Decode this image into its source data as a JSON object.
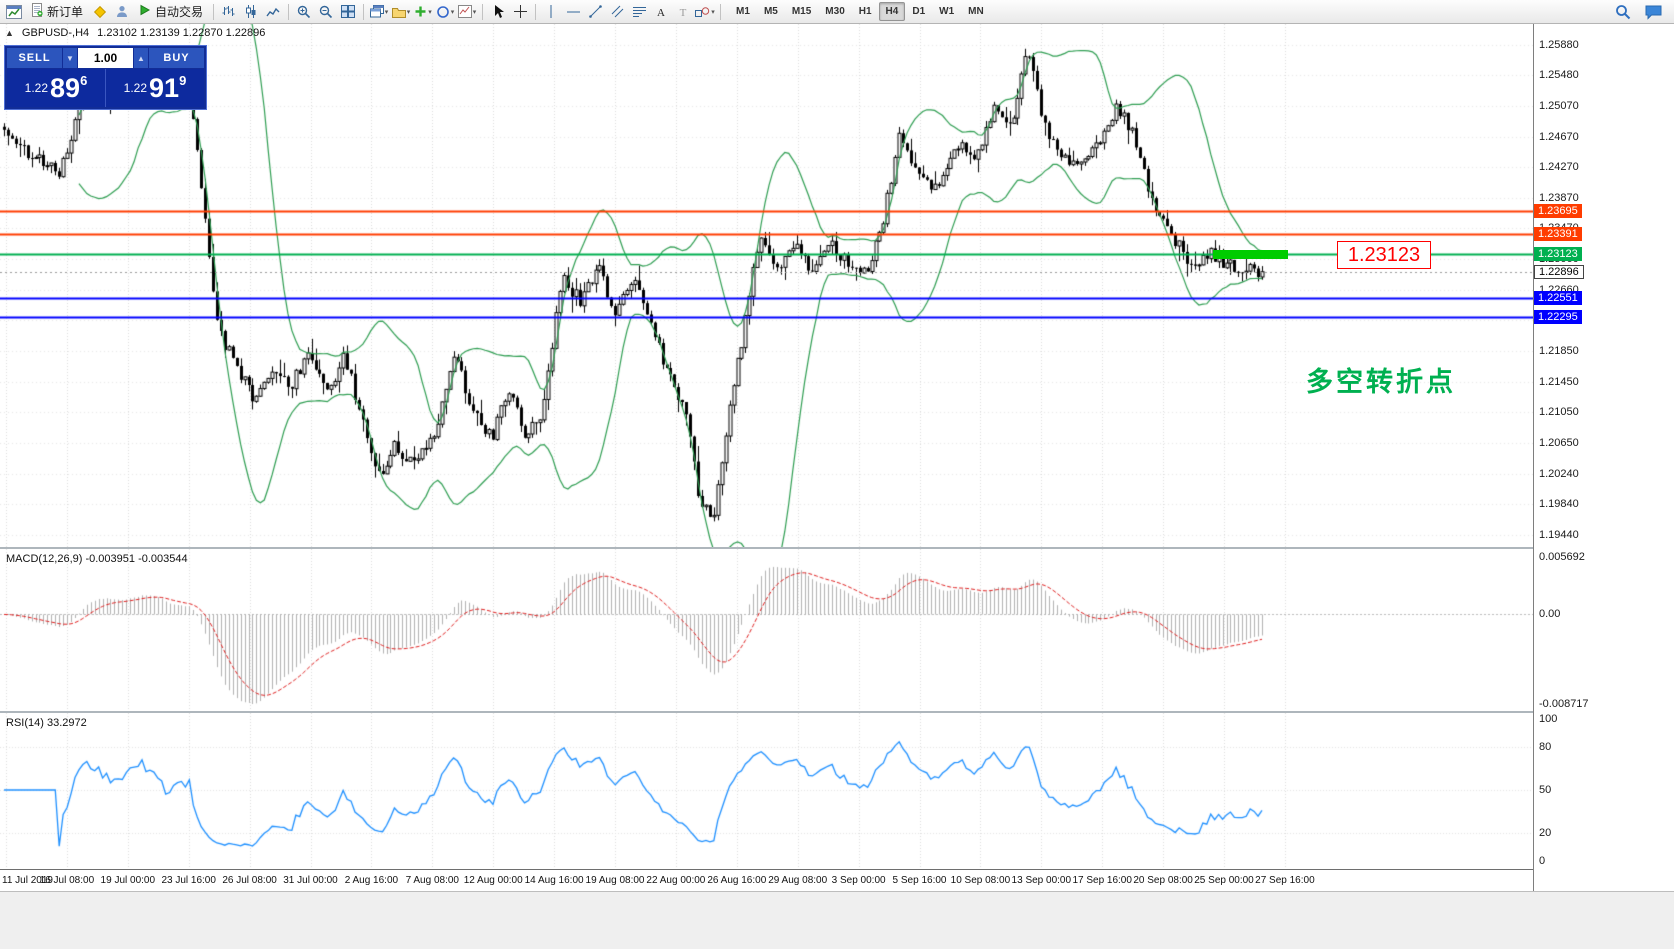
{
  "toolbar": {
    "items": [
      {
        "name": "chart-window-icon"
      },
      {
        "name": "new-order-button",
        "label": "新订单",
        "icon": "new-order-icon"
      },
      {
        "name": "metaeditor-icon"
      },
      {
        "name": "profile-icon"
      },
      {
        "name": "autotrading-button",
        "label": "自动交易",
        "icon": "autotrading-icon"
      },
      {
        "sep": true
      },
      {
        "name": "bar-chart-icon"
      },
      {
        "name": "candlestick-icon"
      },
      {
        "name": "line-chart-icon"
      },
      {
        "sep": true
      },
      {
        "name": "zoom-in-icon"
      },
      {
        "name": "zoom-out-icon"
      },
      {
        "name": "tile-windows-icon"
      },
      {
        "sep": true
      },
      {
        "name": "new-chart-icon",
        "dropdown": true
      },
      {
        "name": "profiles-icon",
        "dropdown": true
      },
      {
        "name": "indicators-icon",
        "dropdown": true
      },
      {
        "name": "objects-icon",
        "dropdown": true
      },
      {
        "name": "templates-icon",
        "dropdown": true
      },
      {
        "sep": true
      },
      {
        "name": "cursor-icon"
      },
      {
        "name": "crosshair-icon"
      },
      {
        "sep": true
      },
      {
        "name": "vline-icon"
      },
      {
        "name": "hline-icon"
      },
      {
        "name": "trendline-icon"
      },
      {
        "name": "channel-icon"
      },
      {
        "name": "fibonacci-icon"
      },
      {
        "name": "text-icon"
      },
      {
        "name": "label-icon"
      },
      {
        "name": "shapes-icon",
        "dropdown": true
      },
      {
        "sep": true
      }
    ],
    "timeframes": [
      "M1",
      "M5",
      "M15",
      "M30",
      "H1",
      "H4",
      "D1",
      "W1",
      "MN"
    ],
    "active_timeframe": "H4",
    "right_icons": [
      {
        "name": "search-icon"
      },
      {
        "name": "chat-icon"
      }
    ]
  },
  "chart": {
    "symbol": "GBPUSD-,H4",
    "ohlc": "1.23102 1.23139 1.22870 1.22896",
    "price_ticks": [
      "1.25880",
      "1.25480",
      "1.25070",
      "1.24670",
      "1.24270",
      "1.23870",
      "1.23470",
      "1.23060",
      "1.22660",
      "1.22260",
      "1.21850",
      "1.21450",
      "1.21050",
      "1.20650",
      "1.20240",
      "1.19840",
      "1.19440"
    ],
    "hlines": [
      {
        "value": 1.23695,
        "label": "1.23695",
        "color": "#ff3c00"
      },
      {
        "value": 1.23391,
        "label": "1.23391",
        "color": "#ff3c00"
      },
      {
        "value": 1.23123,
        "label": "1.23123",
        "color": "#00b050"
      },
      {
        "value": 1.22551,
        "label": "1.22551",
        "color": "#0000ff"
      },
      {
        "value": 1.22295,
        "label": "1.22295",
        "color": "#0000ff"
      }
    ],
    "current_price": {
      "value": 1.22896,
      "label": "1.22896"
    },
    "annotation_price_box": "1.23123",
    "annotation_text": "多空转折点",
    "time_ticks": [
      "11 Jul 2019",
      "16 Jul 08:00",
      "19 Jul 00:00",
      "23 Jul 16:00",
      "26 Jul 08:00",
      "31 Jul 00:00",
      "2 Aug 16:00",
      "7 Aug 08:00",
      "12 Aug 00:00",
      "14 Aug 16:00",
      "19 Aug 08:00",
      "22 Aug 00:00",
      "26 Aug 16:00",
      "29 Aug 08:00",
      "3 Sep 00:00",
      "5 Sep 16:00",
      "10 Sep 08:00",
      "13 Sep 00:00",
      "17 Sep 16:00",
      "20 Sep 08:00",
      "25 Sep 00:00",
      "27 Sep 16:00"
    ]
  },
  "trade_panel": {
    "sell_label": "SELL",
    "buy_label": "BUY",
    "volume": "1.00",
    "sell_price_prefix": "1.22",
    "sell_price_big": "89",
    "sell_price_sup": "6",
    "buy_price_prefix": "1.22",
    "buy_price_big": "91",
    "buy_price_sup": "9"
  },
  "macd": {
    "label": "MACD(12,26,9) -0.003951 -0.003544",
    "axis_top": "0.005692",
    "axis_zero": "0.00",
    "axis_bottom": "-0.008717"
  },
  "rsi": {
    "label": "RSI(14) 33.2972",
    "axis": [
      "100",
      "80",
      "50",
      "20",
      "0"
    ]
  },
  "chart_data": {
    "type": "candlestick",
    "symbol": "GBPUSD",
    "timeframe": "H4",
    "visible_price_range": [
      1.1944,
      1.2588
    ],
    "time_start": "11 Jul 2019",
    "time_end": "27 Sep 16:00",
    "levels": [
      1.23695,
      1.23391,
      1.23123,
      1.22551,
      1.22295
    ],
    "last_close": 1.22896,
    "indicators": [
      {
        "name": "Bollinger Bands",
        "period": 20,
        "deviation": 2,
        "color": "#2f9e52"
      },
      {
        "name": "MACD",
        "fast": 12,
        "slow": 26,
        "signal": 9,
        "current": "-0.003951 -0.003544"
      },
      {
        "name": "RSI",
        "period": 14,
        "current": 33.2972
      }
    ],
    "price_path": [
      [
        0.0,
        1.248
      ],
      [
        0.02,
        1.2445
      ],
      [
        0.045,
        1.242
      ],
      [
        0.065,
        1.253
      ],
      [
        0.09,
        1.2505
      ],
      [
        0.11,
        1.256
      ],
      [
        0.13,
        1.252
      ],
      [
        0.148,
        1.2535
      ],
      [
        0.158,
        1.238
      ],
      [
        0.17,
        1.2215
      ],
      [
        0.185,
        1.216
      ],
      [
        0.2,
        1.212
      ],
      [
        0.212,
        1.2165
      ],
      [
        0.228,
        1.214
      ],
      [
        0.243,
        1.2185
      ],
      [
        0.258,
        1.213
      ],
      [
        0.27,
        1.2185
      ],
      [
        0.285,
        1.209
      ],
      [
        0.298,
        1.202
      ],
      [
        0.31,
        1.2065
      ],
      [
        0.326,
        1.2035
      ],
      [
        0.342,
        1.207
      ],
      [
        0.358,
        1.2185
      ],
      [
        0.372,
        1.211
      ],
      [
        0.388,
        1.207
      ],
      [
        0.4,
        1.2135
      ],
      [
        0.414,
        1.2075
      ],
      [
        0.428,
        1.21
      ],
      [
        0.443,
        1.228
      ],
      [
        0.458,
        1.225
      ],
      [
        0.472,
        1.2295
      ],
      [
        0.487,
        1.2235
      ],
      [
        0.5,
        1.228
      ],
      [
        0.515,
        1.221
      ],
      [
        0.53,
        1.215
      ],
      [
        0.543,
        1.2095
      ],
      [
        0.553,
        1.199
      ],
      [
        0.563,
        1.196
      ],
      [
        0.575,
        1.209
      ],
      [
        0.588,
        1.2215
      ],
      [
        0.6,
        1.2335
      ],
      [
        0.613,
        1.229
      ],
      [
        0.628,
        1.233
      ],
      [
        0.642,
        1.2285
      ],
      [
        0.656,
        1.233
      ],
      [
        0.67,
        1.23
      ],
      [
        0.684,
        1.2285
      ],
      [
        0.698,
        1.235
      ],
      [
        0.712,
        1.247
      ],
      [
        0.727,
        1.242
      ],
      [
        0.742,
        1.2395
      ],
      [
        0.757,
        1.246
      ],
      [
        0.772,
        1.244
      ],
      [
        0.787,
        1.2505
      ],
      [
        0.8,
        1.248
      ],
      [
        0.814,
        1.258
      ],
      [
        0.826,
        1.2485
      ],
      [
        0.84,
        1.2445
      ],
      [
        0.855,
        1.2425
      ],
      [
        0.87,
        1.2455
      ],
      [
        0.884,
        1.2505
      ],
      [
        0.898,
        1.247
      ],
      [
        0.912,
        1.2385
      ],
      [
        0.928,
        1.2335
      ],
      [
        0.944,
        1.23
      ],
      [
        0.958,
        1.2315
      ],
      [
        0.972,
        1.23
      ],
      [
        0.985,
        1.2293
      ],
      [
        1.0,
        1.229
      ]
    ]
  }
}
